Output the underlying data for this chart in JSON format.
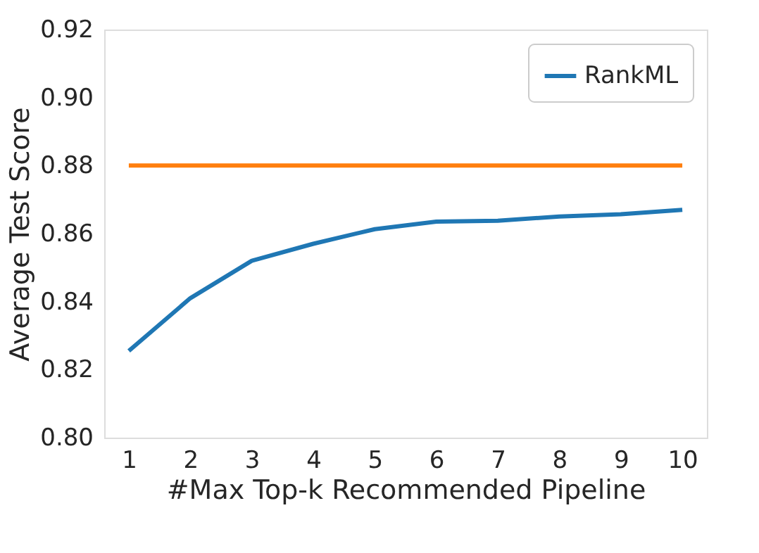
{
  "chart_data": {
    "type": "line",
    "xlabel": "#Max Top-k Recommended Pipeline",
    "ylabel": "Average Test Score",
    "x": [
      1,
      2,
      3,
      4,
      5,
      6,
      7,
      8,
      9,
      10
    ],
    "series": [
      {
        "name": "RankML",
        "color": "#1f77b4",
        "values": [
          0.8255,
          0.841,
          0.852,
          0.857,
          0.8613,
          0.8635,
          0.8638,
          0.865,
          0.8657,
          0.867
        ]
      },
      {
        "color": "#ff7f0e",
        "values": [
          0.88,
          0.88,
          0.88,
          0.88,
          0.88,
          0.88,
          0.88,
          0.88,
          0.88,
          0.88
        ]
      }
    ],
    "xlim": [
      0.6,
      10.4
    ],
    "xticks": [
      1,
      2,
      3,
      4,
      5,
      6,
      7,
      8,
      9,
      10
    ],
    "ylim": [
      0.8,
      0.92
    ],
    "yticks": [
      {
        "value": 0.8,
        "label": "0.80"
      },
      {
        "value": 0.82,
        "label": "0.82"
      },
      {
        "value": 0.84,
        "label": "0.84"
      },
      {
        "value": 0.86,
        "label": "0.86"
      },
      {
        "value": 0.88,
        "label": "0.88"
      },
      {
        "value": 0.9,
        "label": "0.90"
      },
      {
        "value": 0.92,
        "label": "0.92"
      }
    ],
    "grid": false,
    "legend": "top right",
    "marker": "none",
    "line_style": "solid"
  }
}
